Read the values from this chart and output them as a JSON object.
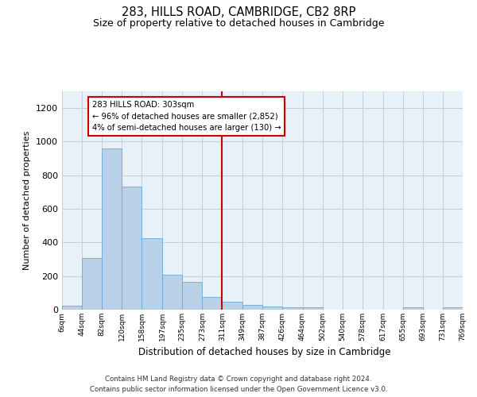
{
  "title": "283, HILLS ROAD, CAMBRIDGE, CB2 8RP",
  "subtitle": "Size of property relative to detached houses in Cambridge",
  "xlabel": "Distribution of detached houses by size in Cambridge",
  "ylabel": "Number of detached properties",
  "bar_color": "#b8d0e8",
  "bar_edge_color": "#6aaad4",
  "background_color": "#e8f0f8",
  "property_line_x": 311,
  "property_line_color": "#cc0000",
  "annotation_line1": "283 HILLS ROAD: 303sqm",
  "annotation_line2": "← 96% of detached houses are smaller (2,852)",
  "annotation_line3": "4% of semi-detached houses are larger (130) →",
  "annotation_box_color": "#cc0000",
  "bin_edges": [
    6,
    44,
    82,
    120,
    158,
    197,
    235,
    273,
    311,
    349,
    387,
    426,
    464,
    502,
    540,
    578,
    617,
    655,
    693,
    731,
    769
  ],
  "bin_labels": [
    "6sqm",
    "44sqm",
    "82sqm",
    "120sqm",
    "158sqm",
    "197sqm",
    "235sqm",
    "273sqm",
    "311sqm",
    "349sqm",
    "387sqm",
    "426sqm",
    "464sqm",
    "502sqm",
    "540sqm",
    "578sqm",
    "617sqm",
    "655sqm",
    "693sqm",
    "731sqm",
    "769sqm"
  ],
  "bar_heights": [
    25,
    305,
    960,
    735,
    425,
    210,
    165,
    75,
    47,
    30,
    18,
    12,
    12,
    0,
    0,
    0,
    0,
    12,
    0,
    12
  ],
  "ylim": [
    0,
    1300
  ],
  "yticks": [
    0,
    200,
    400,
    600,
    800,
    1000,
    1200
  ],
  "footer_line1": "Contains HM Land Registry data © Crown copyright and database right 2024.",
  "footer_line2": "Contains public sector information licensed under the Open Government Licence v3.0."
}
